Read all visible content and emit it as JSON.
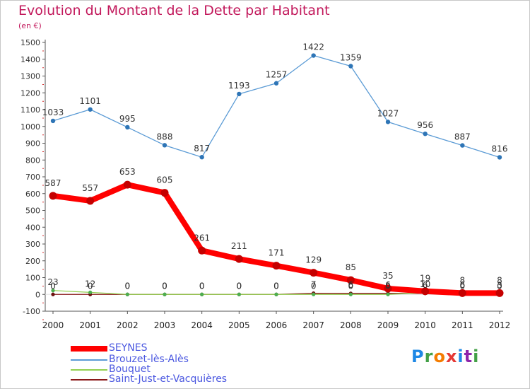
{
  "title": "Evolution du Montant de la Dette par Habitant",
  "subtitle": "(en €)",
  "logo": "Proxiti",
  "chart_data": {
    "type": "line",
    "title": "Evolution du Montant de la Dette par Habitant",
    "subtitle": "(en €)",
    "xlabel": "",
    "ylabel": "",
    "x": [
      "2000",
      "2001",
      "2002",
      "2003",
      "2004",
      "2005",
      "2006",
      "2007",
      "2008",
      "2009",
      "2010",
      "2011",
      "2012"
    ],
    "ylim": [
      -100,
      1500
    ],
    "yticks": [
      -100,
      0,
      100,
      200,
      300,
      400,
      500,
      600,
      700,
      800,
      900,
      1000,
      1100,
      1200,
      1300,
      1400,
      1500
    ],
    "grid": false,
    "legend_position": "bottom-left",
    "series": [
      {
        "name": "SEYNES",
        "color": "#ff0000",
        "values": [
          587,
          557,
          653,
          605,
          261,
          211,
          171,
          129,
          85,
          35,
          19,
          8,
          8
        ],
        "labels": [
          "587",
          "557",
          "653",
          "605",
          "261",
          "211",
          "171",
          "129",
          "85",
          "35",
          "19",
          "8",
          "8"
        ]
      },
      {
        "name": "Brouzet-lès-Alès",
        "color": "#5b9bd5",
        "values": [
          1033,
          1101,
          995,
          888,
          817,
          1193,
          1257,
          1422,
          1359,
          1027,
          956,
          887,
          816
        ],
        "labels": [
          "1033",
          "1101",
          "995",
          "888",
          "817",
          "1193",
          "1257",
          "1422",
          "1359",
          "1027",
          "956",
          "887",
          "816"
        ]
      },
      {
        "name": "Bouquet",
        "color": "#92d050",
        "values": [
          23,
          12,
          0,
          0,
          0,
          0,
          0,
          0,
          0,
          0,
          10,
          0,
          0
        ],
        "labels": [
          "23",
          "12",
          "0",
          "0",
          "0",
          "0",
          "0",
          "0",
          "0",
          "0",
          "10",
          "0",
          "0"
        ]
      },
      {
        "name": "Saint-Just-et-Vacquières",
        "color": "#8b1a1a",
        "values": [
          0,
          0,
          0,
          0,
          0,
          0,
          0,
          7,
          6,
          6,
          6,
          6,
          3
        ],
        "labels": [
          "0",
          "0",
          "0",
          "0",
          "0",
          "0",
          "0",
          "7",
          "6",
          "6",
          "6",
          "6",
          "3"
        ]
      }
    ]
  }
}
